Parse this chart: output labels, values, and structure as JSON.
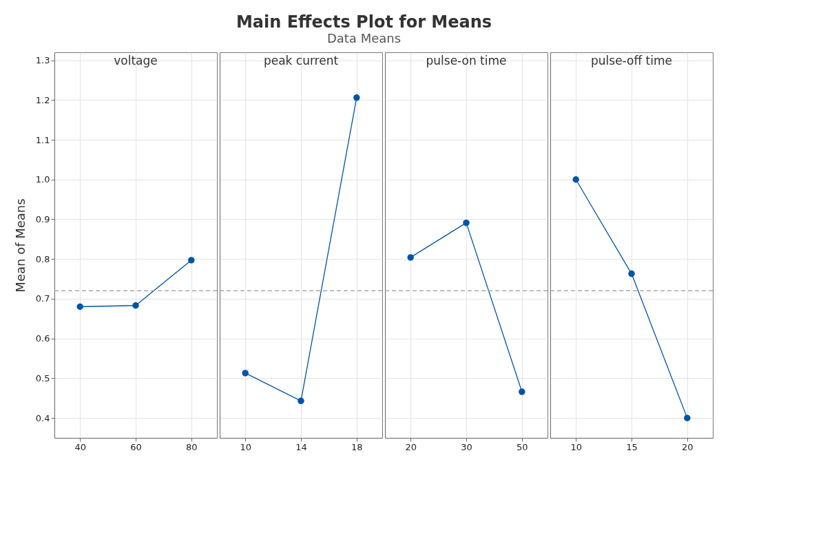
{
  "chart_data": [
    {
      "type": "other",
      "title": "Main Effects Plot for Means",
      "subtitle": "Data Means"
    },
    {
      "type": "line",
      "xlabel": "voltage",
      "ylabel": "Mean of Means",
      "categories": [
        "40",
        "60",
        "80"
      ],
      "series": [
        {
          "color": "#0054a6",
          "values": [
            0.68,
            0.683,
            0.797
          ]
        }
      ],
      "ylim": [
        0.35,
        1.32
      ],
      "yticks": [
        0.4,
        0.5,
        0.6,
        0.7,
        0.8,
        0.9,
        {
          "value": 1,
          "label": "1.0"
        },
        1.1,
        1.2,
        1.3
      ],
      "grid": true,
      "marker": "circle",
      "line_style": "solid",
      "ref_lines": [
        {
          "axis": "y",
          "value": 0.72,
          "color": "#999999",
          "line_style": "dashed"
        }
      ]
    },
    {
      "type": "line",
      "xlabel": "peak current",
      "categories": [
        "10",
        "14",
        "18"
      ],
      "series": [
        {
          "color": "#0054a6",
          "values": [
            0.513,
            0.443,
            1.206
          ]
        }
      ],
      "ylim": [
        0.35,
        1.32
      ],
      "yticks": [
        0.4,
        0.5,
        0.6,
        0.7,
        0.8,
        0.9,
        1,
        1.1,
        1.2,
        1.3
      ],
      "grid": true,
      "marker": "circle",
      "line_style": "solid",
      "tick_labels": "x",
      "ref_lines": [
        {
          "axis": "y",
          "value": 0.72,
          "color": "#999999",
          "line_style": "dashed"
        }
      ]
    },
    {
      "type": "line",
      "xlabel": "pulse-on time",
      "categories": [
        "20",
        "30",
        "50"
      ],
      "series": [
        {
          "color": "#0054a6",
          "values": [
            0.804,
            0.891,
            0.466
          ]
        }
      ],
      "ylim": [
        0.35,
        1.32
      ],
      "yticks": [
        0.4,
        0.5,
        0.6,
        0.7,
        0.8,
        0.9,
        1,
        1.1,
        1.2,
        1.3
      ],
      "grid": true,
      "marker": "circle",
      "line_style": "solid",
      "tick_labels": "x",
      "ref_lines": [
        {
          "axis": "y",
          "value": 0.72,
          "color": "#999999",
          "line_style": "dashed"
        }
      ]
    },
    {
      "type": "line",
      "xlabel": "pulse-off time",
      "categories": [
        "10",
        "15",
        "20"
      ],
      "series": [
        {
          "color": "#0054a6",
          "values": [
            1.0,
            0.763,
            0.4
          ]
        }
      ],
      "ylim": [
        0.35,
        1.32
      ],
      "yticks": [
        0.4,
        0.5,
        0.6,
        0.7,
        0.8,
        0.9,
        1,
        1.1,
        1.2,
        1.3
      ],
      "grid": true,
      "marker": "circle",
      "line_style": "solid",
      "tick_labels": "x",
      "ref_lines": [
        {
          "axis": "y",
          "value": 0.72,
          "color": "#999999",
          "line_style": "dashed"
        }
      ]
    }
  ]
}
